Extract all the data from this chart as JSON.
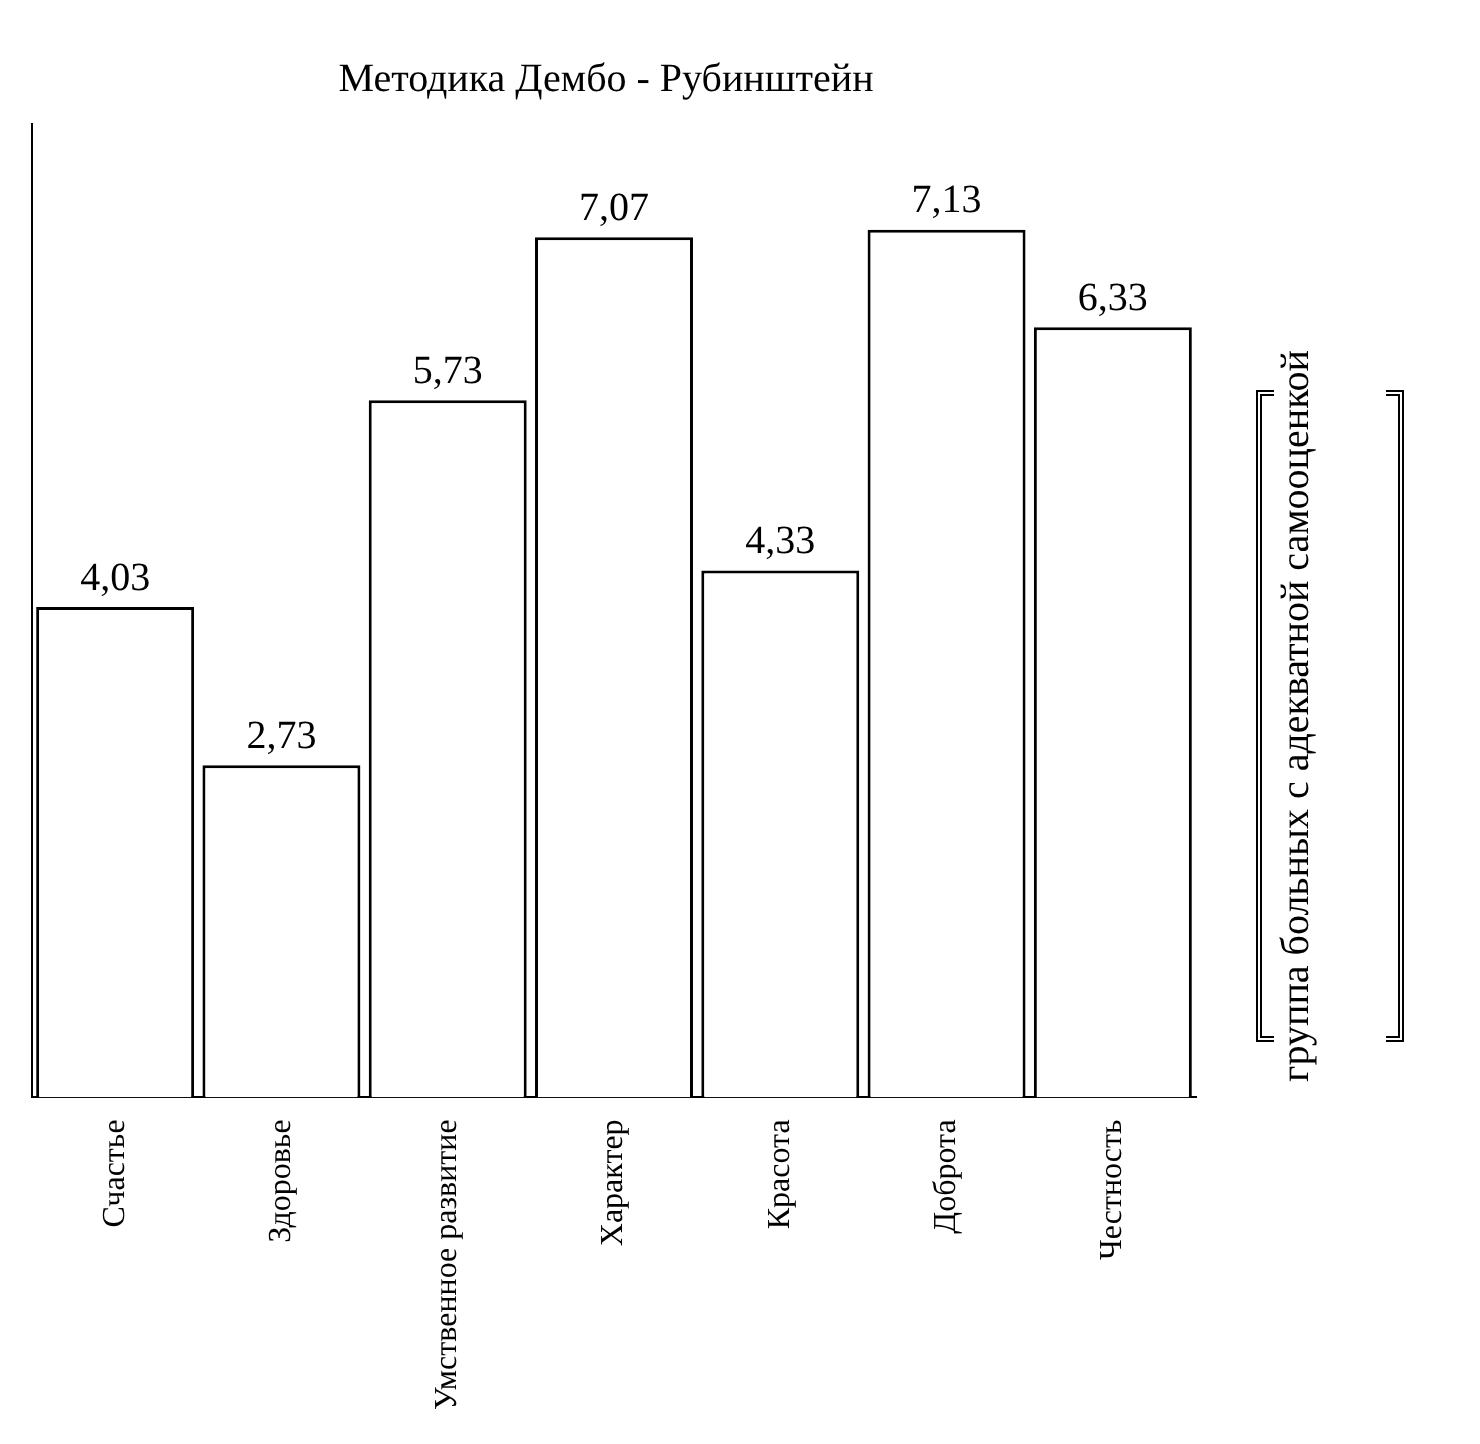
{
  "chart_data": {
    "type": "bar",
    "title": "Методика Дембо - Рубинштейн",
    "categories": [
      "Счастье",
      "Здоровье",
      "Умственное развитие",
      "Характер",
      "Красота",
      "Доброта",
      "Честность"
    ],
    "series": [
      {
        "name": "группа больных с адекватной самооценкой",
        "color": "#ffffff",
        "values": [
          4.03,
          2.73,
          5.73,
          7.07,
          4.33,
          7.13,
          6.33
        ],
        "value_labels": [
          "4,03",
          "2,73",
          "5,73",
          "7,07",
          "4,33",
          "7,13",
          "6,33"
        ]
      }
    ],
    "legend": "right",
    "grid": false
  }
}
